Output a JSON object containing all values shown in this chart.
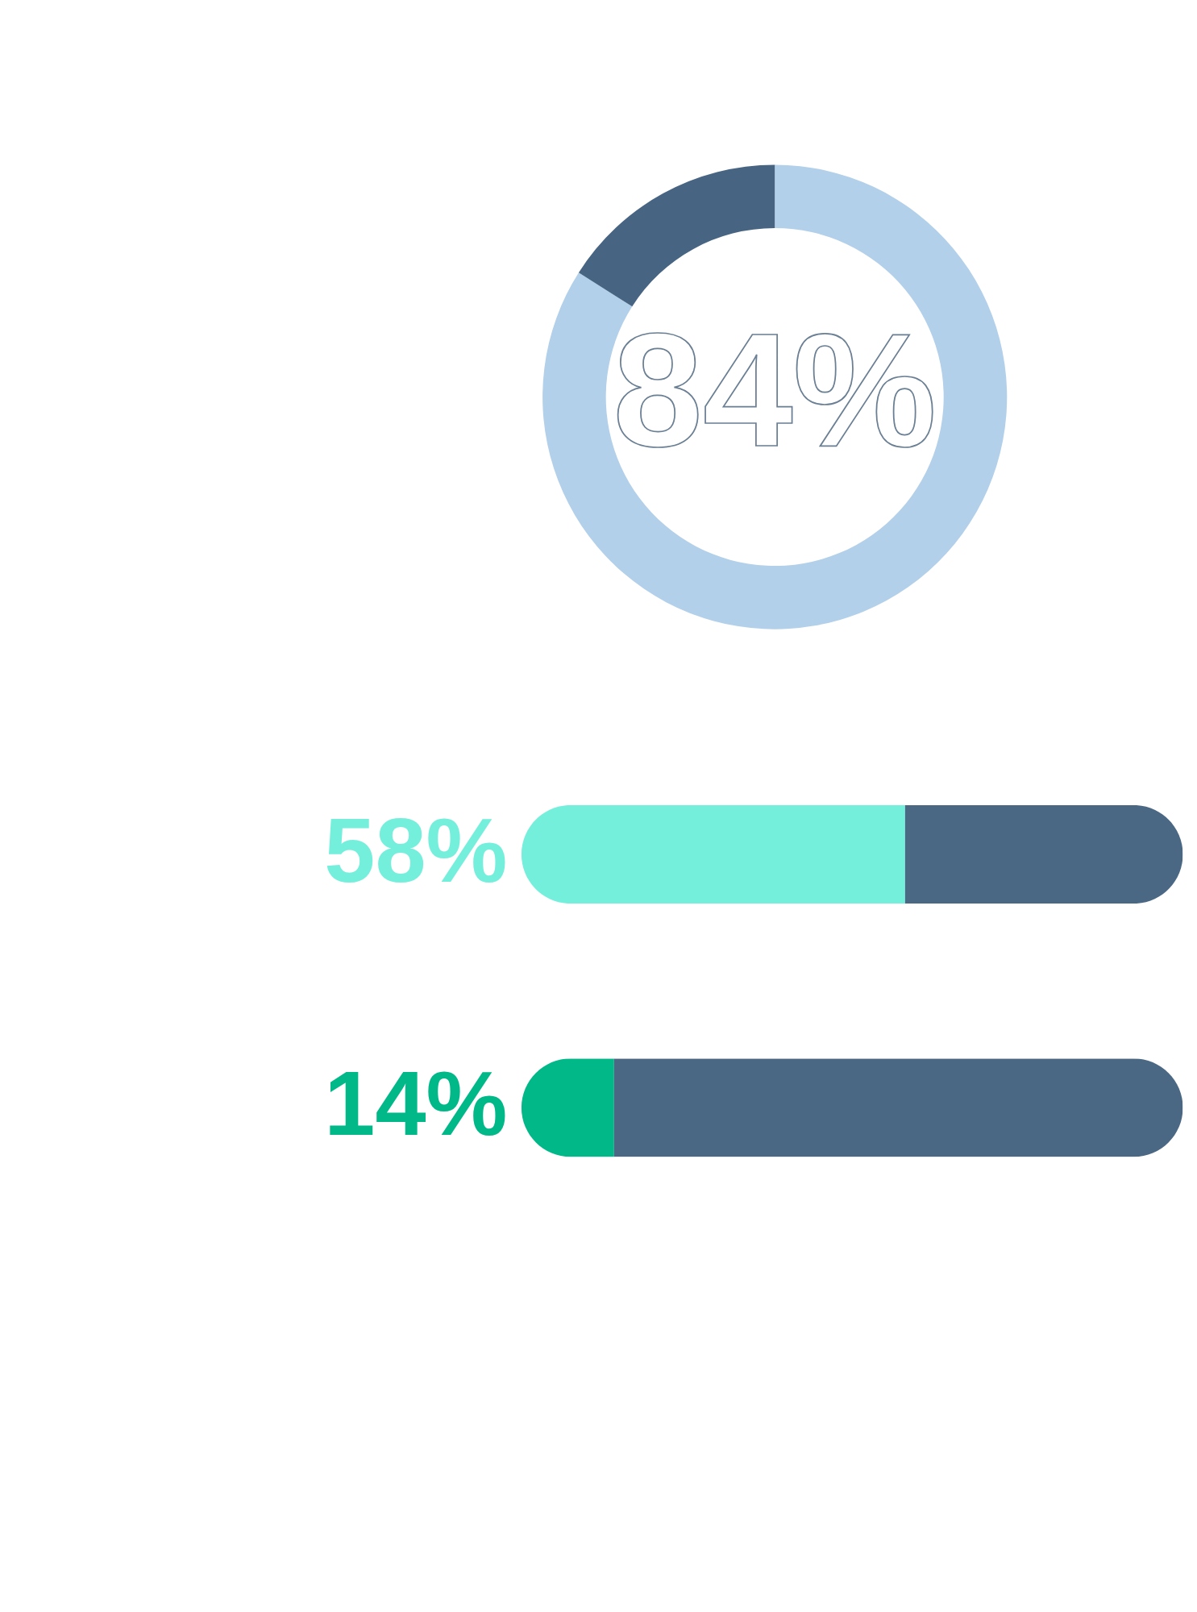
{
  "chart_data": [
    {
      "type": "donut",
      "categories": [
        null,
        null
      ],
      "values": [
        84,
        16
      ],
      "colors": [
        "#b3d0ea",
        "#476582"
      ],
      "annotations": [
        "84%"
      ]
    },
    {
      "type": "bar",
      "orientation": "horizontal",
      "stacked": true,
      "categories": [
        null
      ],
      "series": [
        {
          "color": "#73efdc",
          "values": [
            58
          ],
          "value_labels": [
            "58%"
          ]
        },
        {
          "color": "#4a6884",
          "values": [
            42
          ]
        }
      ]
    },
    {
      "type": "bar",
      "orientation": "horizontal",
      "stacked": true,
      "categories": [
        null
      ],
      "series": [
        {
          "color": "#00b888",
          "values": [
            14
          ],
          "value_labels": [
            "14%"
          ]
        },
        {
          "color": "#4a6884",
          "values": [
            86
          ]
        }
      ]
    }
  ]
}
